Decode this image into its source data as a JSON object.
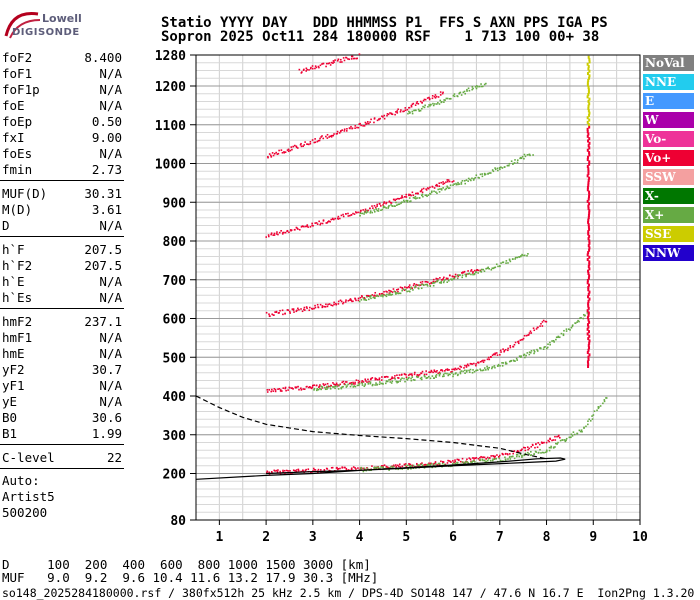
{
  "logo": {
    "line1": "Lowell",
    "line2": "DIGISONDE"
  },
  "header": {
    "row1": "Statio YYYY DAY   DDD HHMMSS P1  FFS S AXN PPS IGA PS",
    "row2": "Sopron 2025 Oct11 284 180000 RSF    1 713 100 00+ 38"
  },
  "params": [
    {
      "name": "foF2",
      "value": "8.400"
    },
    {
      "name": "foF1",
      "value": "N/A"
    },
    {
      "name": "foF1p",
      "value": "N/A"
    },
    {
      "name": "foE",
      "value": "N/A"
    },
    {
      "name": "foEp",
      "value": "0.50"
    },
    {
      "name": "fxI",
      "value": "9.00"
    },
    {
      "name": "foEs",
      "value": "N/A"
    },
    {
      "name": "fmin",
      "value": "2.73"
    },
    {
      "name": "MUF(D)",
      "value": "30.31"
    },
    {
      "name": "M(D)",
      "value": "3.61"
    },
    {
      "name": "D",
      "value": "N/A"
    },
    {
      "name": "h`F",
      "value": "207.5"
    },
    {
      "name": "h`F2",
      "value": "207.5"
    },
    {
      "name": "h`E",
      "value": "N/A"
    },
    {
      "name": "h`Es",
      "value": "N/A"
    },
    {
      "name": "hmF2",
      "value": "237.1"
    },
    {
      "name": "hmF1",
      "value": "N/A"
    },
    {
      "name": "hmE",
      "value": "N/A"
    },
    {
      "name": "yF2",
      "value": "30.7"
    },
    {
      "name": "yF1",
      "value": "N/A"
    },
    {
      "name": "yE",
      "value": "N/A"
    },
    {
      "name": "B0",
      "value": "30.6"
    },
    {
      "name": "B1",
      "value": "1.99"
    },
    {
      "name": "C-level",
      "value": "22"
    }
  ],
  "auto": {
    "label": "Auto:",
    "artist": "Artist5",
    "version": "500200"
  },
  "legend": [
    {
      "label": "NoVal",
      "color": "#808080"
    },
    {
      "label": "NNE",
      "color": "#22ccee"
    },
    {
      "label": "E",
      "color": "#4499ff"
    },
    {
      "label": "W",
      "color": "#aa00aa"
    },
    {
      "label": "Vo-",
      "color": "#ee3399"
    },
    {
      "label": "Vo+",
      "color": "#ee0033"
    },
    {
      "label": "SSW",
      "color": "#f4a0a0"
    },
    {
      "label": "X-",
      "color": "#007700"
    },
    {
      "label": "X+",
      "color": "#66aa44"
    },
    {
      "label": "SSE",
      "color": "#cccc00"
    },
    {
      "label": "NNW",
      "color": "#2200cc"
    }
  ],
  "chart_data": {
    "type": "scatter",
    "xlim": [
      0.5,
      10
    ],
    "ylim": [
      80,
      1280
    ],
    "x_ticks": [
      1,
      2,
      3,
      4,
      5,
      6,
      7,
      8,
      9,
      10
    ],
    "y_ticks": [
      80,
      200,
      300,
      400,
      500,
      600,
      700,
      800,
      900,
      1000,
      1100,
      1200,
      1280
    ],
    "grid": true,
    "traces": [
      {
        "name": "Vo+",
        "color": "#ee0033",
        "points": [
          [
            2,
            205
          ],
          [
            3,
            210
          ],
          [
            4,
            215
          ],
          [
            5,
            222
          ],
          [
            6,
            232
          ],
          [
            7,
            248
          ],
          [
            7.8,
            275
          ],
          [
            8.3,
            300
          ]
        ]
      },
      {
        "name": "X+",
        "color": "#66aa44",
        "points": [
          [
            4,
            212
          ],
          [
            5,
            218
          ],
          [
            6,
            226
          ],
          [
            7,
            238
          ],
          [
            8,
            262
          ],
          [
            8.8,
            320
          ],
          [
            9.3,
            405
          ]
        ]
      },
      {
        "name": "Vo+",
        "color": "#ee0033",
        "points": [
          [
            2,
            415
          ],
          [
            3,
            425
          ],
          [
            4,
            440
          ],
          [
            5,
            455
          ],
          [
            6,
            470
          ],
          [
            6.6,
            490
          ],
          [
            7.4,
            540
          ],
          [
            8,
            600
          ]
        ]
      },
      {
        "name": "X+",
        "color": "#66aa44",
        "points": [
          [
            3,
            420
          ],
          [
            4,
            430
          ],
          [
            5,
            445
          ],
          [
            6,
            458
          ],
          [
            7,
            480
          ],
          [
            8,
            530
          ],
          [
            8.9,
            620
          ]
        ]
      },
      {
        "name": "Vo+",
        "color": "#ee0033",
        "points": [
          [
            2,
            612
          ],
          [
            3,
            630
          ],
          [
            4,
            655
          ],
          [
            5,
            682
          ],
          [
            6,
            712
          ],
          [
            6.6,
            730
          ]
        ]
      },
      {
        "name": "X+",
        "color": "#66aa44",
        "points": [
          [
            4,
            650
          ],
          [
            5,
            675
          ],
          [
            6,
            705
          ],
          [
            7,
            740
          ],
          [
            7.6,
            770
          ]
        ]
      },
      {
        "name": "Vo+",
        "color": "#ee0033",
        "points": [
          [
            2,
            815
          ],
          [
            3,
            845
          ],
          [
            4,
            878
          ],
          [
            5,
            918
          ],
          [
            6,
            960
          ]
        ]
      },
      {
        "name": "X+",
        "color": "#66aa44",
        "points": [
          [
            4,
            870
          ],
          [
            5,
            905
          ],
          [
            6,
            945
          ],
          [
            7,
            990
          ],
          [
            7.7,
            1030
          ]
        ]
      },
      {
        "name": "Vo+",
        "color": "#ee0033",
        "points": [
          [
            2,
            1020
          ],
          [
            3,
            1060
          ],
          [
            4,
            1100
          ],
          [
            5,
            1145
          ],
          [
            5.8,
            1185
          ]
        ]
      },
      {
        "name": "X+",
        "color": "#66aa44",
        "points": [
          [
            5,
            1130
          ],
          [
            6,
            1175
          ],
          [
            6.7,
            1210
          ]
        ]
      },
      {
        "name": "Vo+",
        "color": "#ee0033",
        "points": [
          [
            2.7,
            1240
          ],
          [
            3.5,
            1265
          ],
          [
            4,
            1280
          ]
        ]
      }
    ],
    "profile_solid": [
      [
        0.5,
        185
      ],
      [
        2,
        195
      ],
      [
        3,
        200
      ],
      [
        4,
        208
      ],
      [
        5,
        215
      ],
      [
        6,
        222
      ],
      [
        7,
        230
      ],
      [
        7.8,
        238
      ],
      [
        8.3,
        240
      ],
      [
        8.4,
        237
      ],
      [
        8.2,
        232
      ],
      [
        7.5,
        228
      ],
      [
        6,
        220
      ],
      [
        5,
        214
      ],
      [
        4,
        208
      ],
      [
        3,
        205
      ],
      [
        2,
        200
      ]
    ],
    "profile_dashed": [
      [
        0.5,
        400
      ],
      [
        1,
        370
      ],
      [
        1.5,
        345
      ],
      [
        2,
        327
      ],
      [
        3,
        308
      ],
      [
        4,
        298
      ],
      [
        5,
        290
      ],
      [
        6,
        280
      ],
      [
        7,
        265
      ],
      [
        7.6,
        248
      ],
      [
        8,
        238
      ]
    ],
    "vertical_edge": {
      "x": 8.9,
      "y_range": [
        480,
        1280
      ]
    }
  },
  "bottom": {
    "d_row": "D     100  200  400  600  800 1000 1500 3000 [km]",
    "muf_row": "MUF   9.0  9.2  9.6 10.4 11.6 13.2 17.9 30.3 [MHz]",
    "footer": "so148_2025284180000.rsf / 380fx512h 25 kHz 2.5 km / DPS-4D SO148 147 / 47.6 N 16.7 E  Ion2Png 1.3.20"
  }
}
